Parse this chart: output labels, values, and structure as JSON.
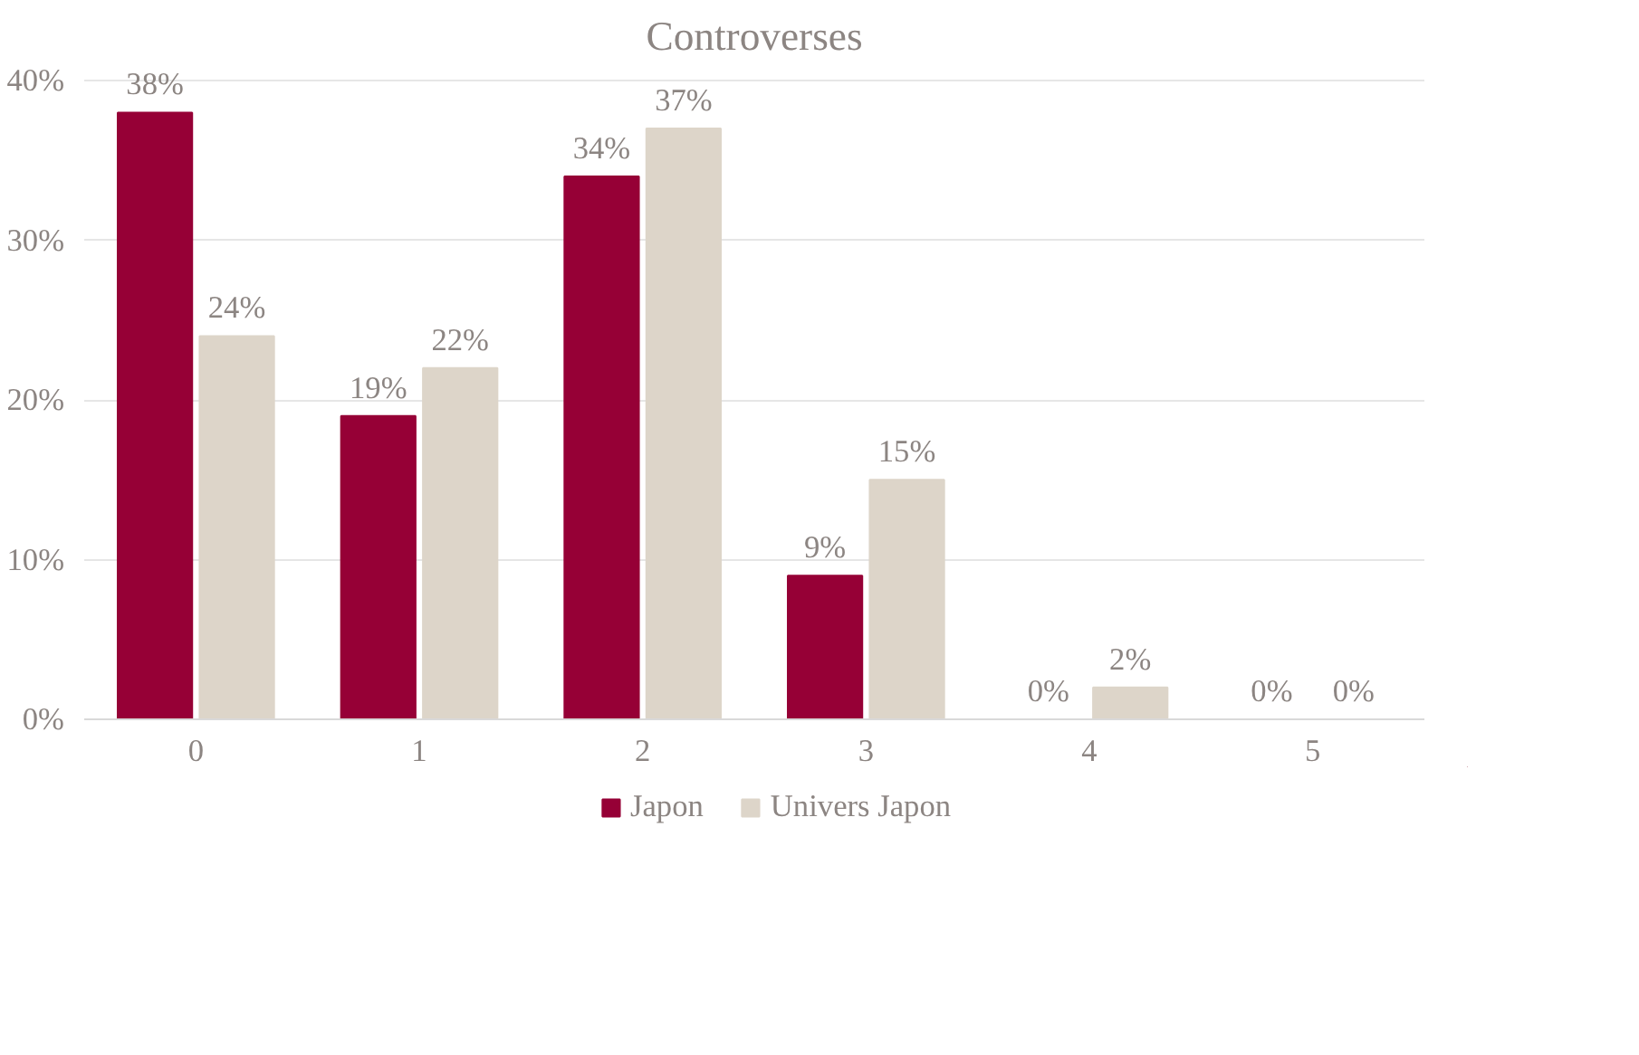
{
  "chart_data": {
    "type": "bar",
    "title": "Controverses",
    "categories": [
      "0",
      "1",
      "2",
      "3",
      "4",
      "5"
    ],
    "series": [
      {
        "name": "Japon",
        "color": "#960036",
        "values": [
          38,
          19,
          34,
          9,
          0,
          0
        ],
        "value_labels": [
          "38%",
          "19%",
          "34%",
          "9%",
          "0%",
          "0%"
        ]
      },
      {
        "name": "Univers Japon",
        "color": "#ddd5c9",
        "values": [
          24,
          22,
          37,
          15,
          2,
          0
        ],
        "value_labels": [
          "24%",
          "22%",
          "37%",
          "15%",
          "2%",
          "0%"
        ]
      }
    ],
    "ylim": [
      0,
      40
    ],
    "yticks": [
      {
        "value": 0,
        "label": "0%"
      },
      {
        "value": 10,
        "label": "10%"
      },
      {
        "value": 20,
        "label": "20%"
      },
      {
        "value": 30,
        "label": "30%"
      },
      {
        "value": 40,
        "label": "40%"
      }
    ],
    "grid": "y",
    "legend": "bottom"
  }
}
